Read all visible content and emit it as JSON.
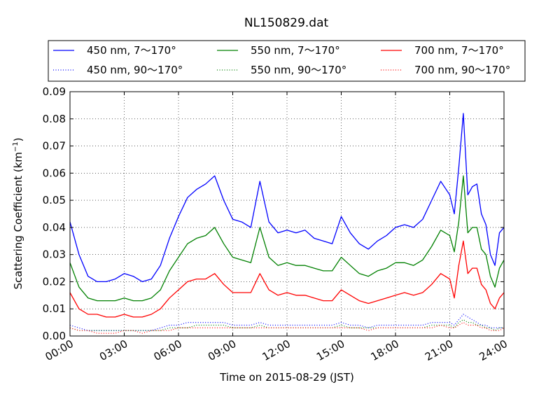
{
  "chart_data": {
    "type": "line",
    "title": "NL150829.dat",
    "xlabel": "Time on 2015-08-29 (JST)",
    "ylabel": "Scattering Coefficient (km",
    "ylabel_sup": "−1",
    "ylabel_end": ")",
    "ylim": [
      0,
      0.09
    ],
    "yticks": [
      0,
      0.01,
      0.02,
      0.03,
      0.04,
      0.05,
      0.06,
      0.07,
      0.08,
      0.09
    ],
    "ytick_labels": [
      "0.00",
      "0.01",
      "0.02",
      "0.03",
      "0.04",
      "0.05",
      "0.06",
      "0.07",
      "0.08",
      "0.09"
    ],
    "xlim": [
      "00:00",
      "24:00"
    ],
    "xticks": [
      "00:00",
      "03:00",
      "06:00",
      "09:00",
      "12:00",
      "15:00",
      "18:00",
      "21:00",
      "24:00"
    ],
    "grid": true,
    "legend_position": "top",
    "colors": {
      "blue": "#0000ff",
      "green": "#008000",
      "red": "#ff0000"
    },
    "x": [
      "00:00",
      "00:30",
      "01:00",
      "01:30",
      "02:00",
      "02:30",
      "03:00",
      "03:30",
      "04:00",
      "04:30",
      "05:00",
      "05:30",
      "06:00",
      "06:30",
      "07:00",
      "07:30",
      "08:00",
      "08:30",
      "09:00",
      "09:30",
      "10:00",
      "10:30",
      "11:00",
      "11:30",
      "12:00",
      "12:30",
      "13:00",
      "13:30",
      "14:00",
      "14:30",
      "15:00",
      "15:30",
      "16:00",
      "16:30",
      "17:00",
      "17:30",
      "18:00",
      "18:30",
      "19:00",
      "19:30",
      "20:00",
      "20:30",
      "21:00",
      "21:15",
      "21:30",
      "21:45",
      "22:00",
      "22:15",
      "22:30",
      "22:45",
      "23:00",
      "23:15",
      "23:30",
      "23:45",
      "24:00"
    ],
    "series": [
      {
        "name": "450 nm, 7～170°",
        "color": "#0000ff",
        "style": "solid",
        "values": [
          0.042,
          0.03,
          0.022,
          0.02,
          0.02,
          0.021,
          0.023,
          0.022,
          0.02,
          0.021,
          0.026,
          0.036,
          0.044,
          0.051,
          0.054,
          0.056,
          0.059,
          0.05,
          0.043,
          0.042,
          0.04,
          0.057,
          0.042,
          0.038,
          0.039,
          0.038,
          0.039,
          0.036,
          0.035,
          0.034,
          0.044,
          0.038,
          0.034,
          0.032,
          0.035,
          0.037,
          0.04,
          0.041,
          0.04,
          0.043,
          0.05,
          0.057,
          0.052,
          0.045,
          0.062,
          0.082,
          0.052,
          0.055,
          0.056,
          0.045,
          0.041,
          0.03,
          0.026,
          0.038,
          0.04
        ]
      },
      {
        "name": "450 nm, 90～170°",
        "color": "#0000ff",
        "style": "dotted",
        "values": [
          0.004,
          0.003,
          0.002,
          0.002,
          0.002,
          0.002,
          0.002,
          0.002,
          0.002,
          0.002,
          0.003,
          0.004,
          0.004,
          0.005,
          0.005,
          0.005,
          0.005,
          0.005,
          0.004,
          0.004,
          0.004,
          0.005,
          0.004,
          0.004,
          0.004,
          0.004,
          0.004,
          0.004,
          0.004,
          0.004,
          0.005,
          0.004,
          0.004,
          0.003,
          0.004,
          0.004,
          0.004,
          0.004,
          0.004,
          0.004,
          0.005,
          0.005,
          0.005,
          0.004,
          0.006,
          0.008,
          0.007,
          0.006,
          0.005,
          0.004,
          0.004,
          0.003,
          0.003,
          0.003,
          0.003
        ]
      },
      {
        "name": "550 nm, 7～170°",
        "color": "#008000",
        "style": "solid",
        "values": [
          0.027,
          0.018,
          0.014,
          0.013,
          0.013,
          0.013,
          0.014,
          0.013,
          0.013,
          0.014,
          0.017,
          0.024,
          0.029,
          0.034,
          0.036,
          0.037,
          0.04,
          0.034,
          0.029,
          0.028,
          0.027,
          0.04,
          0.029,
          0.026,
          0.027,
          0.026,
          0.026,
          0.025,
          0.024,
          0.024,
          0.029,
          0.026,
          0.023,
          0.022,
          0.024,
          0.025,
          0.027,
          0.027,
          0.026,
          0.028,
          0.033,
          0.039,
          0.037,
          0.031,
          0.042,
          0.059,
          0.038,
          0.04,
          0.04,
          0.032,
          0.03,
          0.022,
          0.018,
          0.025,
          0.028
        ]
      },
      {
        "name": "550 nm, 90～170°",
        "color": "#008000",
        "style": "dotted",
        "values": [
          0.003,
          0.002,
          0.002,
          0.002,
          0.002,
          0.002,
          0.002,
          0.002,
          0.002,
          0.002,
          0.002,
          0.003,
          0.003,
          0.003,
          0.004,
          0.004,
          0.004,
          0.004,
          0.003,
          0.003,
          0.003,
          0.004,
          0.003,
          0.003,
          0.003,
          0.003,
          0.003,
          0.003,
          0.003,
          0.003,
          0.004,
          0.003,
          0.003,
          0.003,
          0.003,
          0.003,
          0.003,
          0.003,
          0.003,
          0.003,
          0.004,
          0.004,
          0.004,
          0.003,
          0.005,
          0.006,
          0.005,
          0.005,
          0.004,
          0.004,
          0.003,
          0.003,
          0.002,
          0.003,
          0.003
        ]
      },
      {
        "name": "700 nm, 7～170°",
        "color": "#ff0000",
        "style": "solid",
        "values": [
          0.016,
          0.01,
          0.008,
          0.008,
          0.007,
          0.007,
          0.008,
          0.007,
          0.007,
          0.008,
          0.01,
          0.014,
          0.017,
          0.02,
          0.021,
          0.021,
          0.023,
          0.019,
          0.016,
          0.016,
          0.016,
          0.023,
          0.017,
          0.015,
          0.016,
          0.015,
          0.015,
          0.014,
          0.013,
          0.013,
          0.017,
          0.015,
          0.013,
          0.012,
          0.013,
          0.014,
          0.015,
          0.016,
          0.015,
          0.016,
          0.019,
          0.023,
          0.021,
          0.014,
          0.026,
          0.035,
          0.023,
          0.025,
          0.025,
          0.019,
          0.017,
          0.012,
          0.01,
          0.014,
          0.016
        ]
      },
      {
        "name": "700 nm, 90～170°",
        "color": "#ff0000",
        "style": "dotted",
        "values": [
          0.003,
          0.002,
          0.002,
          0.001,
          0.001,
          0.001,
          0.002,
          0.002,
          0.001,
          0.002,
          0.002,
          0.002,
          0.003,
          0.003,
          0.003,
          0.003,
          0.003,
          0.003,
          0.003,
          0.003,
          0.003,
          0.003,
          0.003,
          0.003,
          0.003,
          0.003,
          0.003,
          0.003,
          0.003,
          0.003,
          0.003,
          0.003,
          0.003,
          0.002,
          0.003,
          0.003,
          0.003,
          0.003,
          0.003,
          0.003,
          0.003,
          0.004,
          0.003,
          0.003,
          0.004,
          0.005,
          0.004,
          0.004,
          0.004,
          0.003,
          0.003,
          0.002,
          0.002,
          0.002,
          0.003
        ]
      }
    ]
  }
}
